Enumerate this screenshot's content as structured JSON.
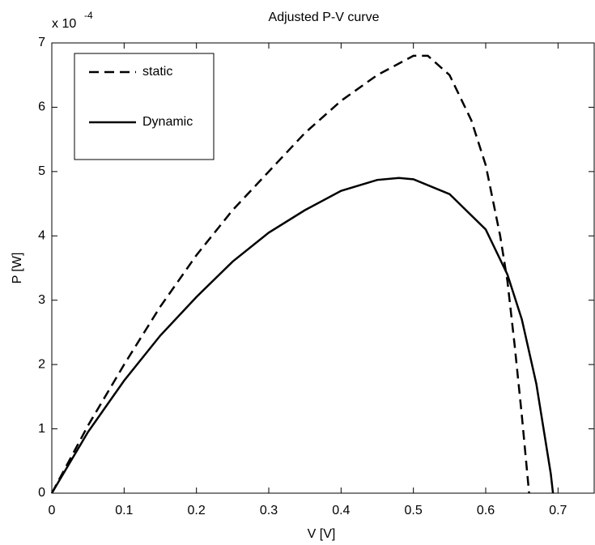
{
  "chart_data": {
    "type": "line",
    "title": "Adjusted P-V curve",
    "x_label": "V [V]",
    "y_label": "P [W]",
    "y_multiplier": "x 10",
    "y_multiplier_exponent": "-4",
    "xlim": [
      0,
      0.75
    ],
    "ylim": [
      0,
      7
    ],
    "xticks": [
      0,
      0.1,
      0.2,
      0.3,
      0.4,
      0.5,
      0.6,
      0.7
    ],
    "yticks": [
      0,
      1,
      2,
      3,
      4,
      5,
      6,
      7
    ],
    "grid": false,
    "legend_position": "upper left",
    "series": [
      {
        "name": "static",
        "color": "#000000",
        "line_style": "dashed",
        "x": [
          0,
          0.05,
          0.1,
          0.15,
          0.2,
          0.25,
          0.3,
          0.35,
          0.4,
          0.45,
          0.5,
          0.52,
          0.55,
          0.58,
          0.6,
          0.62,
          0.63,
          0.64,
          0.65,
          0.66
        ],
        "values": [
          0,
          1.05,
          2.0,
          2.9,
          3.7,
          4.4,
          5.0,
          5.6,
          6.1,
          6.5,
          6.8,
          6.8,
          6.5,
          5.8,
          5.1,
          4.0,
          3.3,
          2.3,
          1.2,
          0
        ]
      },
      {
        "name": "Dynamic",
        "color": "#000000",
        "line_style": "solid",
        "x": [
          0,
          0.05,
          0.1,
          0.15,
          0.2,
          0.25,
          0.3,
          0.35,
          0.4,
          0.45,
          0.48,
          0.5,
          0.55,
          0.6,
          0.63,
          0.65,
          0.67,
          0.68,
          0.69,
          0.693
        ],
        "values": [
          0,
          0.95,
          1.75,
          2.45,
          3.05,
          3.6,
          4.05,
          4.4,
          4.7,
          4.87,
          4.9,
          4.88,
          4.65,
          4.1,
          3.4,
          2.7,
          1.7,
          1.0,
          0.3,
          0
        ]
      }
    ]
  }
}
